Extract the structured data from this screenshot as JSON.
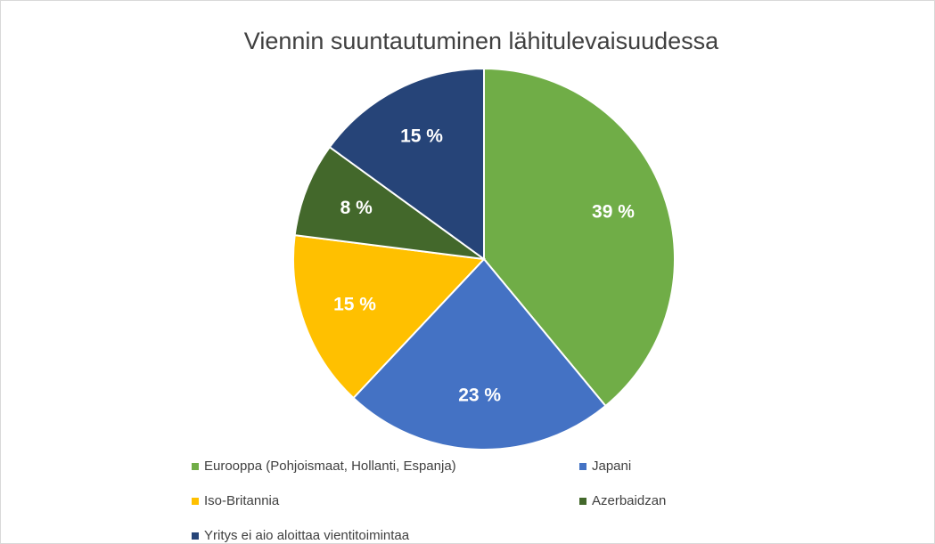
{
  "chart_data": {
    "type": "pie",
    "title": "Viennin suuntautuminen lähitulevaisuudessa",
    "categories": [
      "Eurooppa (Pohjoismaat, Hollanti, Espanja)",
      "Japani",
      "Iso-Britannia",
      "Azerbaidzan",
      "Yritys ei aio aloittaa vientitoimintaa"
    ],
    "values": [
      39,
      23,
      15,
      8,
      15
    ],
    "value_labels": [
      "39 %",
      "23 %",
      "15 %",
      "8 %",
      "15 %"
    ],
    "colors": [
      "#70ad47",
      "#4472c4",
      "#ffc000",
      "#43682b",
      "#264478"
    ]
  }
}
